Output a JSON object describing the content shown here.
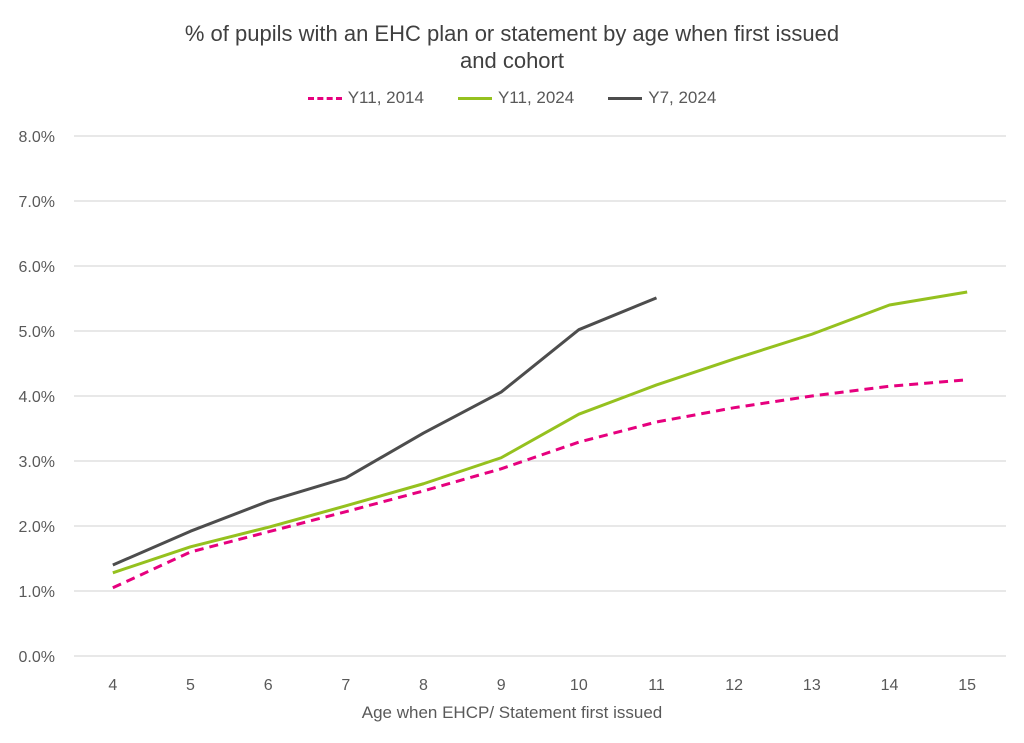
{
  "chart_data": {
    "type": "line",
    "title": "% of pupils with an EHC plan or statement by age when first issued and cohort",
    "title_lines": [
      "% of pupils with an EHC plan or statement by age when first issued",
      "and cohort"
    ],
    "xlabel": "Age when EHCP/ Statement first issued",
    "ylabel": "",
    "x": [
      4,
      5,
      6,
      7,
      8,
      9,
      10,
      11,
      12,
      13,
      14,
      15
    ],
    "ylim": [
      0,
      8
    ],
    "yticks": [
      "0.0%",
      "1.0%",
      "2.0%",
      "3.0%",
      "4.0%",
      "5.0%",
      "6.0%",
      "7.0%",
      "8.0%"
    ],
    "grid": true,
    "legend_position": "top",
    "series": [
      {
        "name": "Y11, 2014",
        "color": "#e6007e",
        "dashed": true,
        "values": [
          1.05,
          1.6,
          1.91,
          2.22,
          2.54,
          2.88,
          3.29,
          3.6,
          3.82,
          4.0,
          4.15,
          4.25
        ]
      },
      {
        "name": "Y11, 2024",
        "color": "#95c11f",
        "dashed": false,
        "values": [
          1.28,
          1.68,
          1.98,
          2.31,
          2.65,
          3.05,
          3.72,
          4.17,
          4.57,
          4.95,
          5.4,
          5.6
        ]
      },
      {
        "name": "Y7, 2024",
        "color": "#4d4d4d",
        "dashed": false,
        "values": [
          1.4,
          1.92,
          2.38,
          2.74,
          3.43,
          4.06,
          5.02,
          5.51,
          null,
          null,
          null,
          null
        ]
      }
    ]
  }
}
